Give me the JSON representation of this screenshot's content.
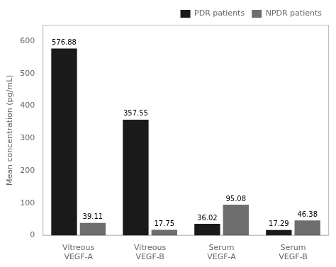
{
  "chart_data": {
    "type": "bar",
    "categories": [
      "Vitreous\nVEGF-A",
      "Vitreous\nVEGF-B",
      "Serum\nVEGF-A",
      "Serum\nVEGF-B"
    ],
    "series": [
      {
        "name": "PDR patients",
        "color": "#1a1a1a",
        "values": [
          576.88,
          357.55,
          36.02,
          17.29
        ]
      },
      {
        "name": "NPDR patients",
        "color": "#6e6e6e",
        "values": [
          39.11,
          17.75,
          95.08,
          46.38
        ]
      }
    ],
    "ylabel": "Mean concentration (pg/mL)",
    "ylim": [
      0,
      650
    ],
    "yticks": [
      0,
      100,
      200,
      300,
      400,
      500,
      600
    ],
    "grid": false,
    "legend": "upper right",
    "data_labels": true
  }
}
